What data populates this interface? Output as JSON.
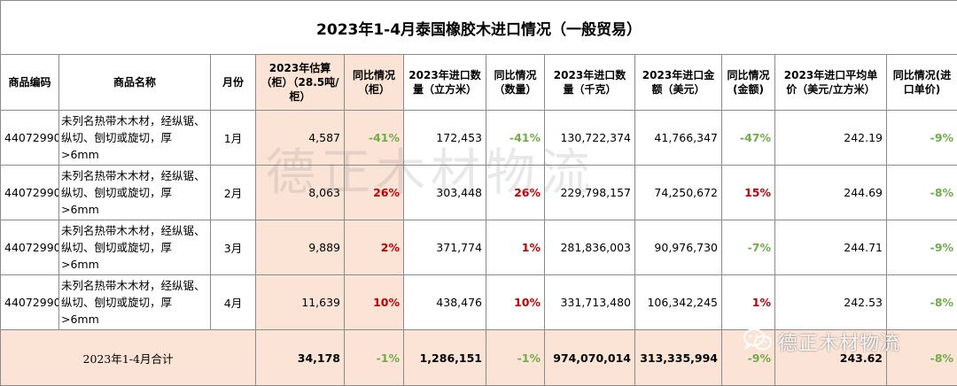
{
  "title": "2023年1-4月泰国橡胶木进口情况（一般贸易）",
  "headers": {
    "code": "商品编码",
    "name": "商品名称",
    "month": "月份",
    "est": "2023年估算（柜）（28.5吨/柜）",
    "yoy_est": "同比情况（柜）",
    "qty_m3": "2023年进口数量（立方米）",
    "yoy_qty": "同比情况（数量）",
    "qty_kg": "2023年进口数量（千克）",
    "amount": "2023年进口金额（美元）",
    "yoy_amount": "同比情况(金额)",
    "unit_price": "2023年进口平均单价（美元/立方米）",
    "yoy_price": "同比情况(进口单价)"
  },
  "rows": [
    {
      "code": "44072990",
      "name": "未列名热带木木材，经纵锯、纵切、刨切或旋切，厚>6mm",
      "month": "1月",
      "est": "4,587",
      "yoy_est": "-41%",
      "qty_m3": "172,453",
      "yoy_qty": "-41%",
      "qty_kg": "130,722,374",
      "amount": "41,766,347",
      "yoy_amount": "-47%",
      "unit_price": "242.19",
      "yoy_price": "-9%"
    },
    {
      "code": "44072990",
      "name": "未列名热带木木材，经纵锯、纵切、刨切或旋切，厚>6mm",
      "month": "2月",
      "est": "8,063",
      "yoy_est": "26%",
      "qty_m3": "303,448",
      "yoy_qty": "26%",
      "qty_kg": "229,798,157",
      "amount": "74,250,672",
      "yoy_amount": "15%",
      "unit_price": "244.69",
      "yoy_price": "-8%"
    },
    {
      "code": "44072990",
      "name": "未列名热带木木材，经纵锯、纵切、刨切或旋切，厚>6mm",
      "month": "3月",
      "est": "9,889",
      "yoy_est": "2%",
      "qty_m3": "371,774",
      "yoy_qty": "1%",
      "qty_kg": "281,836,003",
      "amount": "90,976,730",
      "yoy_amount": "-7%",
      "unit_price": "244.71",
      "yoy_price": "-9%"
    },
    {
      "code": "44072990",
      "name": "未列名热带木木材，经纵锯、纵切、刨切或旋切，厚>6mm",
      "month": "4月",
      "est": "11,639",
      "yoy_est": "10%",
      "qty_m3": "438,476",
      "yoy_qty": "10%",
      "qty_kg": "331,713,480",
      "amount": "106,342,245",
      "yoy_amount": "1%",
      "unit_price": "242.53",
      "yoy_price": "-8%"
    }
  ],
  "total": {
    "label": "2023年1-4月合计",
    "est": "34,178",
    "yoy_est": "-1%",
    "qty_m3": "1,286,151",
    "yoy_qty": "-1%",
    "qty_kg": "974,070,014",
    "amount": "313,335,994",
    "yoy_amount": "-9%",
    "unit_price": "243.62",
    "yoy_price": "-8%"
  },
  "watermark": "德正木材物流",
  "logo_text": "德正木材物流",
  "logo_icon": "wechat-icon",
  "colors": {
    "positive": "#c00000",
    "negative": "#70ad47",
    "highlight": "#fbe3d6"
  }
}
